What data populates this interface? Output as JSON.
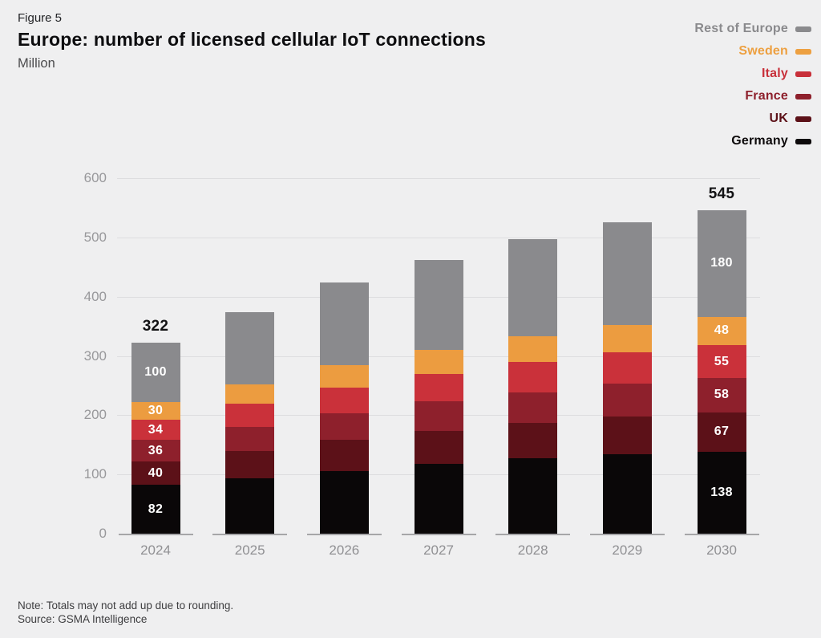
{
  "header": {
    "figure_label": "Figure 5",
    "title": "Europe: number of licensed cellular IoT connections",
    "unit": "Million"
  },
  "legend": [
    {
      "label": "Rest of Europe",
      "color": "#8a8a8d"
    },
    {
      "label": "Sweden",
      "color": "#eda041"
    },
    {
      "label": "Italy",
      "color": "#c8303a"
    },
    {
      "label": "France",
      "color": "#8e202c"
    },
    {
      "label": "UK",
      "color": "#5c1118"
    },
    {
      "label": "Germany",
      "color": "#0d0a0b"
    }
  ],
  "chart_data": {
    "type": "bar",
    "stacked": true,
    "title": "Europe: number of licensed cellular IoT connections",
    "unit": "Million",
    "xlabel": "",
    "ylabel": "",
    "categories": [
      "2024",
      "2025",
      "2026",
      "2027",
      "2028",
      "2029",
      "2030"
    ],
    "series": [
      {
        "name": "Germany",
        "color": "#0a0708",
        "values": [
          82,
          93,
          106,
          118,
          127,
          134,
          138
        ]
      },
      {
        "name": "UK",
        "color": "#5c1118",
        "values": [
          40,
          47,
          52,
          56,
          60,
          64,
          67
        ]
      },
      {
        "name": "France",
        "color": "#8e202c",
        "values": [
          36,
          40,
          45,
          49,
          52,
          55,
          58
        ]
      },
      {
        "name": "Italy",
        "color": "#ca313a",
        "values": [
          34,
          39,
          44,
          47,
          51,
          53,
          55
        ]
      },
      {
        "name": "Sweden",
        "color": "#ec9c40",
        "values": [
          30,
          33,
          37,
          40,
          43,
          46,
          48
        ]
      },
      {
        "name": "Rest of Europe",
        "color": "#8a8a8d",
        "values": [
          100,
          122,
          140,
          152,
          164,
          173,
          180
        ]
      }
    ],
    "segment_labels_shown_for": [
      "2024",
      "2030"
    ],
    "total_labels": [
      {
        "category": "2024",
        "label": "322"
      },
      {
        "category": "2030",
        "label": "545"
      }
    ],
    "ylim": [
      0,
      600
    ],
    "yticks": [
      "0",
      "100",
      "200",
      "300",
      "400",
      "500",
      "600"
    ],
    "grid": "horizontal",
    "legend_position": "top-right"
  },
  "notes": {
    "note": "Note: Totals may not add up due to rounding.",
    "source": "Source: GSMA Intelligence"
  }
}
